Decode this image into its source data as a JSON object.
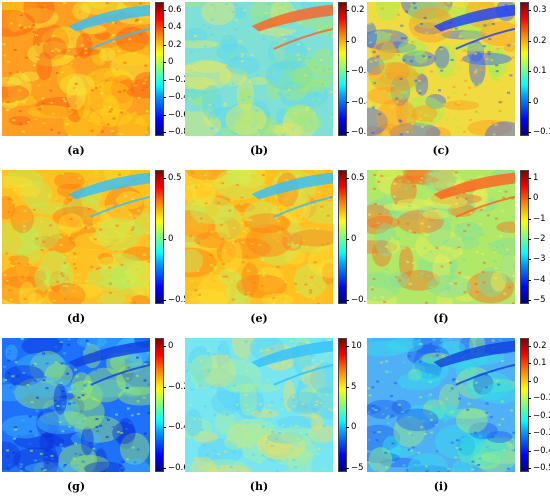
{
  "panels": [
    {
      "label": "(a)",
      "ticks": [
        "0.6",
        "0.4",
        "0.2",
        "0",
        "−0.2",
        "−0.4",
        "−0.6",
        "−0.8"
      ]
    },
    {
      "label": "(b)",
      "ticks": [
        "0.2",
        "0",
        "−0.2",
        "−0.4",
        "−0.6"
      ]
    },
    {
      "label": "(c)",
      "ticks": [
        "0.3",
        "0.2",
        "0.1",
        "0",
        "−0.1"
      ]
    },
    {
      "label": "(d)",
      "ticks": [
        "0.5",
        "0",
        "−0.5"
      ]
    },
    {
      "label": "(e)",
      "ticks": [
        "0.5",
        "0",
        "−0.5"
      ]
    },
    {
      "label": "(f)",
      "ticks": [
        "1",
        "0",
        "−1",
        "−2",
        "−3",
        "−4",
        "−5"
      ]
    },
    {
      "label": "(g)",
      "ticks": [
        "0",
        "−0.2",
        "−0.4",
        "−0.6"
      ]
    },
    {
      "label": "(h)",
      "ticks": [
        "10",
        "5",
        "0",
        "−5"
      ]
    },
    {
      "label": "(i)",
      "ticks": [
        "0.2",
        "0.1",
        "0",
        "−0.1",
        "−0.2",
        "−0.3",
        "−0.4",
        "−0.5"
      ]
    }
  ],
  "palette": {
    "a": "#ff9a1a",
    "b": "#7fdfe0",
    "c": "#f2d83a",
    "d": "#ffb020",
    "e": "#ffb020",
    "f": "#b8e860",
    "g": "#2a7fff",
    "h": "#7fe8f0",
    "i": "#52b0f5"
  }
}
